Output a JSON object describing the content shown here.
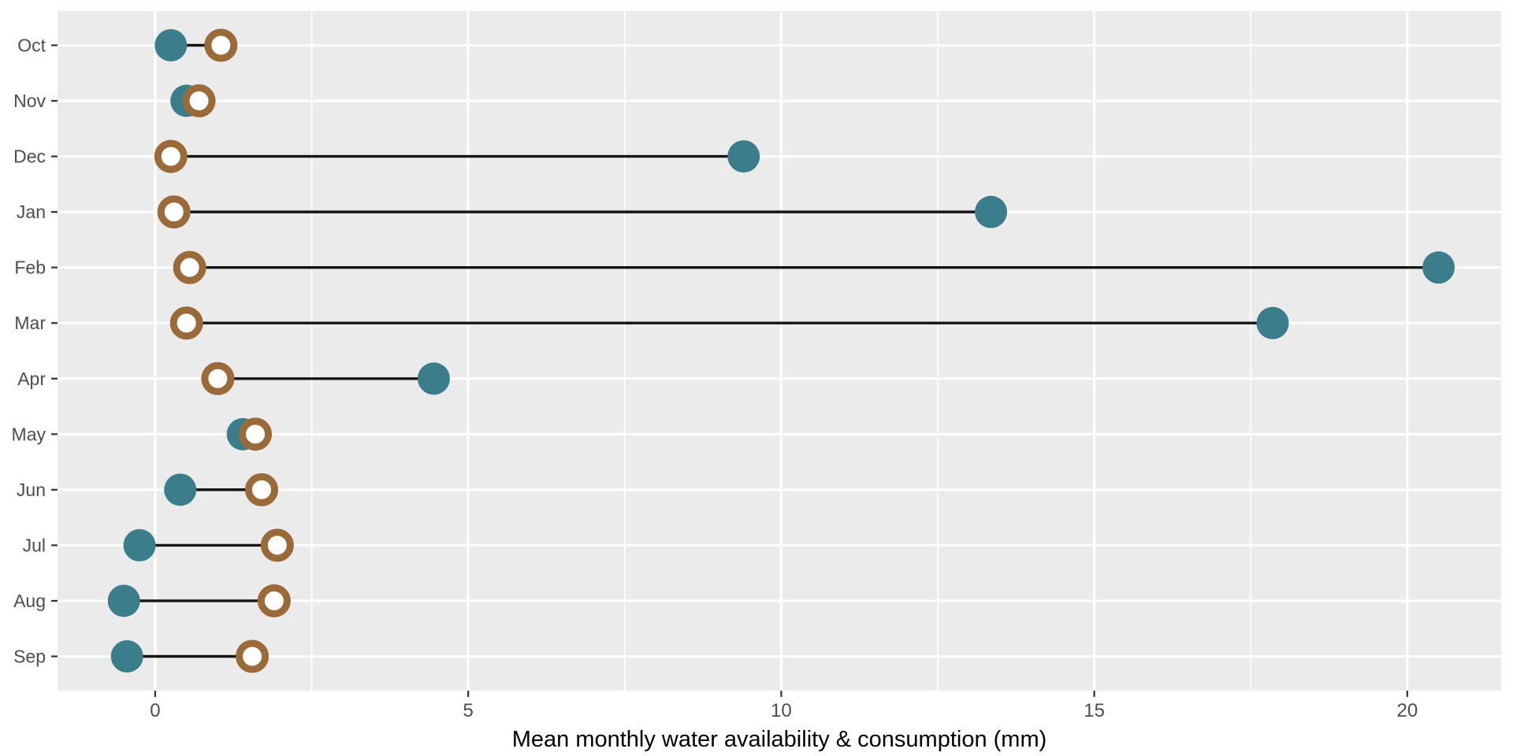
{
  "chart_data": {
    "type": "dumbbell",
    "orientation": "horizontal",
    "title": "",
    "xlabel": "Mean monthly water availability & consumption (mm)",
    "ylabel": "",
    "categories": [
      "Oct",
      "Nov",
      "Dec",
      "Jan",
      "Feb",
      "Mar",
      "Apr",
      "May",
      "Jun",
      "Jul",
      "Aug",
      "Sep"
    ],
    "series": [
      {
        "name": "availability",
        "marker": "filled-circle",
        "color": "#3C7D8C",
        "values": [
          0.25,
          0.5,
          9.4,
          13.35,
          20.5,
          17.85,
          4.45,
          1.4,
          0.4,
          -0.25,
          -0.5,
          -0.45
        ]
      },
      {
        "name": "consumption",
        "marker": "open-ring",
        "color": "#9A6A38",
        "fill": "#FFFFFF",
        "values": [
          1.05,
          0.7,
          0.25,
          0.3,
          0.55,
          0.5,
          1.0,
          1.6,
          1.7,
          1.95,
          1.9,
          1.55
        ]
      }
    ],
    "x_ticks": [
      0,
      5,
      10,
      15,
      20
    ],
    "x_minor_ticks": [
      2.5,
      7.5,
      12.5,
      17.5
    ],
    "xlim": [
      -1.56,
      21.5
    ],
    "legend": "none",
    "grid": "major-white-on-gray",
    "colors": {
      "panel_bg": "#EBEBEB",
      "grid_major": "#FFFFFF",
      "grid_minor": "#FFFFFF",
      "connector": "#141414",
      "tick_mark": "#333333",
      "tick_label": "#4D4D4D",
      "axis_title": "#000000",
      "background": "#FFFFFF"
    }
  }
}
